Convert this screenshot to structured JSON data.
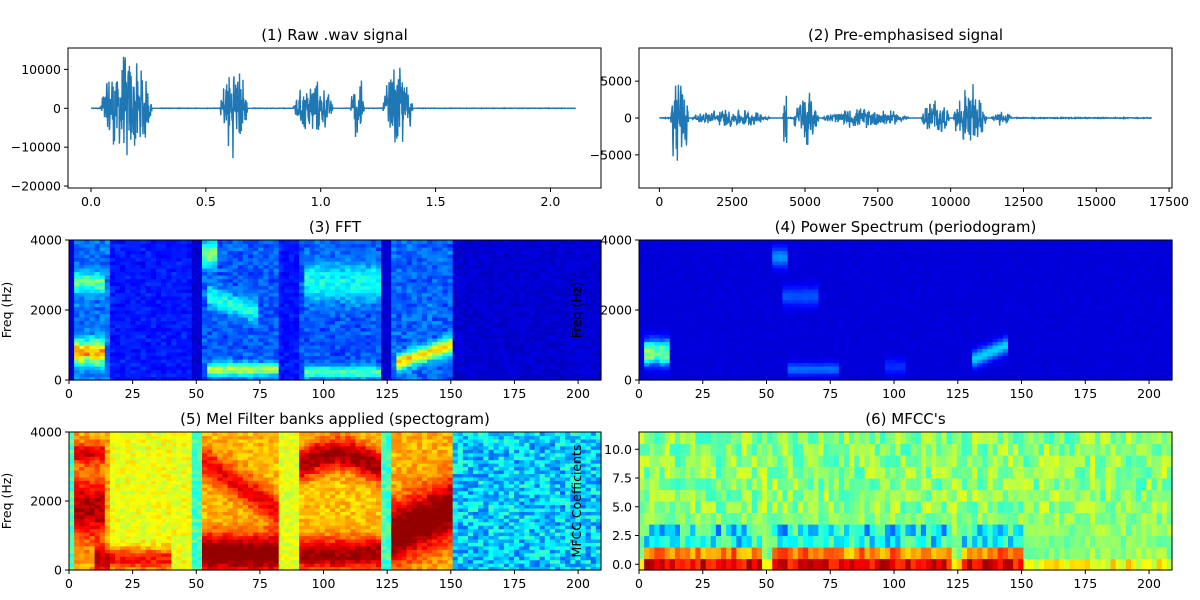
{
  "colors": {
    "signal": "#1f77b4",
    "colormap": "jet"
  },
  "chart_data": [
    {
      "id": "p1",
      "type": "line",
      "title": "(1) Raw .wav signal",
      "xlabel": "",
      "ylabel": "",
      "xlim": [
        -0.1,
        2.22
      ],
      "ylim": [
        -20500,
        15500
      ],
      "xticks": [
        0.0,
        0.5,
        1.0,
        1.5,
        2.0
      ],
      "xtick_labels": [
        "0.0",
        "0.5",
        "1.0",
        "1.5",
        "2.0"
      ],
      "yticks": [
        -20000,
        -10000,
        0,
        10000
      ],
      "ytick_labels": [
        "−20000",
        "−10000",
        "0",
        "10000"
      ],
      "series_color": "#1f77b4",
      "x_end": 2.11,
      "bursts": [
        {
          "start": 0.04,
          "end": 0.3,
          "amp": 15500
        },
        {
          "start": 0.56,
          "end": 0.7,
          "amp": 13500
        },
        {
          "start": 0.88,
          "end": 1.08,
          "amp": 8000
        },
        {
          "start": 1.13,
          "end": 1.2,
          "amp": 10000
        },
        {
          "start": 1.27,
          "end": 1.42,
          "amp": 12500
        }
      ]
    },
    {
      "id": "p2",
      "type": "line",
      "title": "(2) Pre-emphasised signal",
      "xlabel": "",
      "ylabel": "",
      "xlim": [
        -700,
        17600
      ],
      "ylim": [
        -9500,
        9500
      ],
      "xticks": [
        0,
        2500,
        5000,
        7500,
        10000,
        12500,
        15000,
        17500
      ],
      "xtick_labels": [
        "0",
        "2500",
        "5000",
        "7500",
        "10000",
        "12500",
        "15000",
        "17500"
      ],
      "yticks": [
        -5000,
        0,
        5000
      ],
      "ytick_labels": [
        "−5000",
        "0",
        "5000"
      ],
      "series_color": "#1f77b4",
      "x_end": 16900,
      "bursts": [
        {
          "start": 380,
          "end": 1100,
          "amp": 8800
        },
        {
          "start": 1100,
          "end": 4200,
          "amp": 1400
        },
        {
          "start": 4250,
          "end": 4400,
          "amp": 8800
        },
        {
          "start": 4600,
          "end": 5600,
          "amp": 4200
        },
        {
          "start": 5600,
          "end": 9000,
          "amp": 1500
        },
        {
          "start": 9000,
          "end": 10100,
          "amp": 3000
        },
        {
          "start": 10100,
          "end": 11400,
          "amp": 4800
        },
        {
          "start": 11400,
          "end": 12200,
          "amp": 1200
        }
      ]
    },
    {
      "id": "p3",
      "type": "heatmap",
      "title": "(3) FFT",
      "xlabel": "",
      "ylabel": "Freq (Hz)",
      "xlim": [
        0,
        209
      ],
      "ylim": [
        0,
        4000
      ],
      "xticks": [
        0,
        25,
        50,
        75,
        100,
        125,
        150,
        175,
        200
      ],
      "xtick_labels": [
        "0",
        "25",
        "50",
        "75",
        "100",
        "125",
        "150",
        "175",
        "200"
      ],
      "yticks": [
        0,
        2000,
        4000
      ],
      "ytick_labels": [
        "0",
        "2000",
        "4000"
      ],
      "colormap": "jet"
    },
    {
      "id": "p4",
      "type": "heatmap",
      "title": "(4) Power Spectrum (periodogram)",
      "xlabel": "",
      "ylabel": "Freq (Hz)",
      "xlim": [
        0,
        209
      ],
      "ylim": [
        0,
        4000
      ],
      "xticks": [
        0,
        25,
        50,
        75,
        100,
        125,
        150,
        175,
        200
      ],
      "xtick_labels": [
        "0",
        "25",
        "50",
        "75",
        "100",
        "125",
        "150",
        "175",
        "200"
      ],
      "yticks": [
        0,
        2000,
        4000
      ],
      "ytick_labels": [
        "0",
        "2000",
        "4000"
      ],
      "colormap": "jet"
    },
    {
      "id": "p5",
      "type": "heatmap",
      "title": "(5) Mel Filter banks applied (spectogram)",
      "xlabel": "",
      "ylabel": "Freq (Hz)",
      "xlim": [
        0,
        209
      ],
      "ylim": [
        0,
        4000
      ],
      "xticks": [
        0,
        25,
        50,
        75,
        100,
        125,
        150,
        175,
        200
      ],
      "xtick_labels": [
        "0",
        "25",
        "50",
        "75",
        "100",
        "125",
        "150",
        "175",
        "200"
      ],
      "yticks": [
        0,
        2000,
        4000
      ],
      "ytick_labels": [
        "0",
        "2000",
        "4000"
      ],
      "colormap": "jet"
    },
    {
      "id": "p6",
      "type": "heatmap",
      "title": "(6) MFCC's",
      "xlabel": "",
      "ylabel": "MFCC Coefficients",
      "xlim": [
        0,
        209
      ],
      "ylim": [
        -0.5,
        11.5
      ],
      "xticks": [
        0,
        25,
        50,
        75,
        100,
        125,
        150,
        175,
        200
      ],
      "xtick_labels": [
        "0",
        "25",
        "50",
        "75",
        "100",
        "125",
        "150",
        "175",
        "200"
      ],
      "yticks": [
        0.0,
        2.5,
        5.0,
        7.5,
        10.0
      ],
      "ytick_labels": [
        "0.0",
        "2.5",
        "5.0",
        "7.5",
        "10.0"
      ],
      "colormap": "jet"
    }
  ]
}
